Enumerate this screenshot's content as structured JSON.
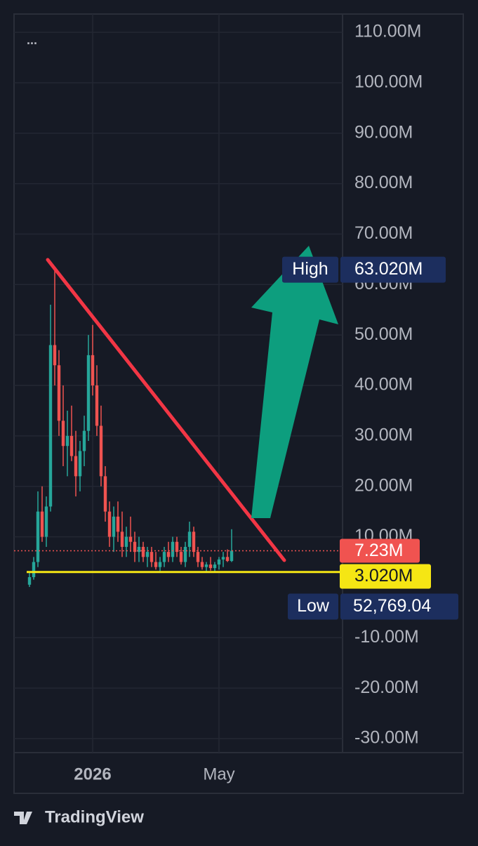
{
  "chart_data": {
    "type": "candlestick",
    "menu": "...",
    "categories": [
      null,
      null,
      null,
      null,
      null,
      null,
      null,
      null,
      null,
      null,
      null,
      null,
      null,
      null,
      null,
      "2026",
      null,
      null,
      null,
      null,
      null,
      null,
      null,
      null,
      null,
      null,
      null,
      null,
      null,
      null,
      null,
      null,
      null,
      null,
      null,
      null,
      null,
      null,
      null,
      null,
      null,
      null,
      null,
      null,
      null,
      "May",
      null,
      null,
      null
    ],
    "open": [
      0.5,
      2,
      5,
      15,
      10,
      16,
      48,
      44,
      33,
      28,
      30,
      26,
      22,
      27,
      31,
      46,
      40,
      32,
      22,
      15,
      10,
      14,
      11,
      8,
      10,
      9,
      7,
      8,
      6,
      7,
      5,
      4,
      5,
      7,
      6,
      9,
      7,
      5,
      8,
      11,
      7,
      5,
      4,
      4.5,
      3.8,
      4.5,
      5.5,
      6,
      5.2
    ],
    "high": [
      3,
      6,
      19,
      20,
      18,
      56,
      63.02,
      47,
      40,
      35,
      36,
      31,
      29,
      34,
      50,
      52,
      44,
      36,
      24,
      17,
      16,
      17,
      15,
      12,
      14,
      11,
      10,
      9,
      8,
      8,
      7,
      6,
      8,
      9,
      10,
      10,
      8,
      9,
      13,
      12,
      8,
      6,
      5,
      6,
      5,
      6,
      7,
      7.5,
      11.5
    ],
    "low": [
      0.05276904,
      1.5,
      4,
      9,
      8,
      15,
      40,
      30,
      24,
      22,
      25,
      18,
      19,
      24,
      29,
      38,
      30,
      20,
      13,
      8,
      7,
      9,
      6,
      6,
      7,
      5,
      5,
      5,
      4,
      4,
      3.5,
      3.2,
      4,
      5,
      5,
      6,
      4.5,
      4,
      6,
      6,
      4,
      3.5,
      3,
      3.3,
      3.1,
      3.5,
      4,
      5,
      5
    ],
    "close": [
      2,
      5,
      15,
      10,
      16,
      48,
      44,
      33,
      28,
      30,
      26,
      22,
      27,
      31,
      46,
      40,
      32,
      22,
      15,
      10,
      14,
      11,
      8,
      10,
      9,
      7,
      8,
      6,
      7,
      5,
      4,
      5,
      7,
      6,
      9,
      7,
      5,
      8,
      11,
      7,
      5,
      4,
      4.5,
      3.8,
      4.5,
      5.5,
      6,
      5.2,
      7.23
    ],
    "up_color": "#26a69a",
    "down_color": "#ef5350",
    "ylim": [
      -30,
      110
    ],
    "yticks": [
      {
        "value": -30,
        "label": "-30.00M"
      },
      {
        "value": -20,
        "label": "-20.00M"
      },
      {
        "value": -10,
        "label": "-10.00M"
      },
      {
        "value": 10,
        "label": "10.00M"
      },
      {
        "value": 20,
        "label": "20.00M"
      },
      {
        "value": 30,
        "label": "30.00M"
      },
      {
        "value": 40,
        "label": "40.00M"
      },
      {
        "value": 50,
        "label": "50.00M"
      },
      {
        "value": 60,
        "label": "60.00M"
      },
      {
        "value": 70,
        "label": "70.00M"
      },
      {
        "value": 80,
        "label": "80.00M"
      },
      {
        "value": 90,
        "label": "90.00M"
      },
      {
        "value": 100,
        "label": "100.00M"
      },
      {
        "value": 110,
        "label": "110.00M"
      }
    ],
    "grid": true,
    "last_price": {
      "value": 7.23,
      "label": "7.23M",
      "color": "#f05350"
    },
    "support": {
      "value": 3.02,
      "label": "3.020M",
      "color": "#f5e614"
    },
    "high_mark": {
      "text": "High",
      "value": 63.02,
      "label": "63.020M"
    },
    "low_mark": {
      "text": "Low",
      "value": 0.05276904,
      "label": "52,769.04"
    }
  },
  "brand": "TradingView"
}
